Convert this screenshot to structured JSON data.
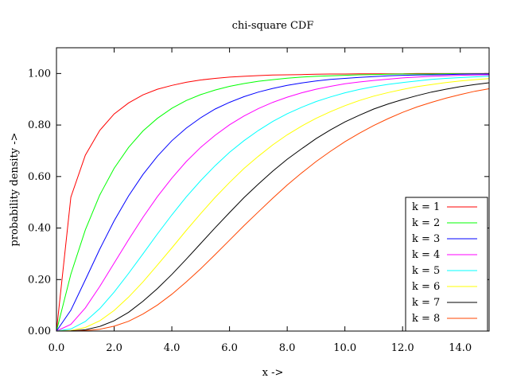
{
  "chart_data": {
    "type": "line",
    "title": "chi-square CDF",
    "xlabel": "x ->",
    "ylabel": "probability density ->",
    "xlim": [
      0,
      15
    ],
    "ylim": [
      0,
      1.1
    ],
    "x_ticks": [
      "0.0",
      "2.0",
      "4.0",
      "6.0",
      "8.0",
      "10.0",
      "12.0",
      "14.0"
    ],
    "x_tick_values": [
      0,
      2,
      4,
      6,
      8,
      10,
      12,
      14
    ],
    "y_ticks": [
      "0.00",
      "0.20",
      "0.40",
      "0.60",
      "0.80",
      "1.00"
    ],
    "y_tick_values": [
      0,
      0.2,
      0.4,
      0.6,
      0.8,
      1.0
    ],
    "grid": false,
    "legend_position": "bottom-right",
    "x": [
      0,
      0.5,
      1,
      1.5,
      2,
      2.5,
      3,
      3.5,
      4,
      4.5,
      5,
      5.5,
      6,
      6.5,
      7,
      7.5,
      8,
      8.5,
      9,
      9.5,
      10,
      10.5,
      11,
      11.5,
      12,
      12.5,
      13,
      13.5,
      14,
      14.5,
      15
    ],
    "series": [
      {
        "name": "k = 1",
        "color": "#ff0000",
        "values": [
          0,
          0.52,
          0.683,
          0.779,
          0.843,
          0.886,
          0.917,
          0.939,
          0.954,
          0.966,
          0.975,
          0.981,
          0.986,
          0.989,
          0.992,
          0.994,
          0.995,
          0.996,
          0.997,
          0.998,
          0.998,
          0.999,
          0.999,
          0.999,
          0.999,
          1.0,
          1.0,
          1.0,
          1.0,
          1.0,
          1.0
        ]
      },
      {
        "name": "k = 2",
        "color": "#00ff00",
        "values": [
          0,
          0.221,
          0.393,
          0.528,
          0.632,
          0.713,
          0.777,
          0.826,
          0.865,
          0.895,
          0.918,
          0.936,
          0.95,
          0.961,
          0.97,
          0.976,
          0.982,
          0.986,
          0.989,
          0.991,
          0.993,
          0.995,
          0.996,
          0.997,
          0.998,
          0.998,
          0.998,
          0.999,
          0.999,
          0.999,
          0.999
        ]
      },
      {
        "name": "k = 3",
        "color": "#0000ff",
        "values": [
          0,
          0.081,
          0.199,
          0.318,
          0.428,
          0.525,
          0.608,
          0.679,
          0.739,
          0.788,
          0.828,
          0.862,
          0.888,
          0.91,
          0.928,
          0.942,
          0.954,
          0.963,
          0.971,
          0.977,
          0.981,
          0.985,
          0.988,
          0.991,
          0.993,
          0.994,
          0.995,
          0.996,
          0.997,
          0.998,
          0.998
        ]
      },
      {
        "name": "k = 4",
        "color": "#ff00ff",
        "values": [
          0,
          0.026,
          0.09,
          0.173,
          0.264,
          0.355,
          0.442,
          0.522,
          0.594,
          0.658,
          0.713,
          0.76,
          0.801,
          0.835,
          0.864,
          0.888,
          0.908,
          0.925,
          0.939,
          0.95,
          0.96,
          0.967,
          0.973,
          0.978,
          0.983,
          0.986,
          0.989,
          0.991,
          0.993,
          0.994,
          0.995
        ]
      },
      {
        "name": "k = 5",
        "color": "#00ffff",
        "values": [
          0,
          0.008,
          0.037,
          0.087,
          0.151,
          0.224,
          0.3,
          0.377,
          0.451,
          0.521,
          0.584,
          0.642,
          0.694,
          0.739,
          0.779,
          0.814,
          0.844,
          0.869,
          0.891,
          0.909,
          0.925,
          0.938,
          0.949,
          0.958,
          0.965,
          0.971,
          0.977,
          0.981,
          0.984,
          0.987,
          0.99
        ]
      },
      {
        "name": "k = 6",
        "color": "#ffff00",
        "values": [
          0,
          0.002,
          0.014,
          0.04,
          0.08,
          0.132,
          0.191,
          0.256,
          0.323,
          0.391,
          0.456,
          0.519,
          0.577,
          0.631,
          0.679,
          0.723,
          0.762,
          0.796,
          0.826,
          0.852,
          0.875,
          0.895,
          0.912,
          0.926,
          0.938,
          0.949,
          0.957,
          0.965,
          0.971,
          0.976,
          0.98
        ]
      },
      {
        "name": "k = 7",
        "color": "#000000",
        "values": [
          0,
          0.001,
          0.005,
          0.018,
          0.04,
          0.073,
          0.116,
          0.165,
          0.22,
          0.279,
          0.34,
          0.401,
          0.46,
          0.518,
          0.571,
          0.621,
          0.667,
          0.708,
          0.747,
          0.781,
          0.812,
          0.838,
          0.862,
          0.882,
          0.899,
          0.914,
          0.928,
          0.939,
          0.949,
          0.957,
          0.964
        ]
      },
      {
        "name": "k = 8",
        "color": "#ff4500",
        "values": [
          0,
          0.0,
          0.002,
          0.007,
          0.019,
          0.038,
          0.066,
          0.101,
          0.143,
          0.191,
          0.242,
          0.297,
          0.353,
          0.409,
          0.463,
          0.516,
          0.567,
          0.614,
          0.658,
          0.698,
          0.735,
          0.768,
          0.798,
          0.825,
          0.849,
          0.87,
          0.888,
          0.904,
          0.918,
          0.931,
          0.941
        ]
      }
    ]
  }
}
